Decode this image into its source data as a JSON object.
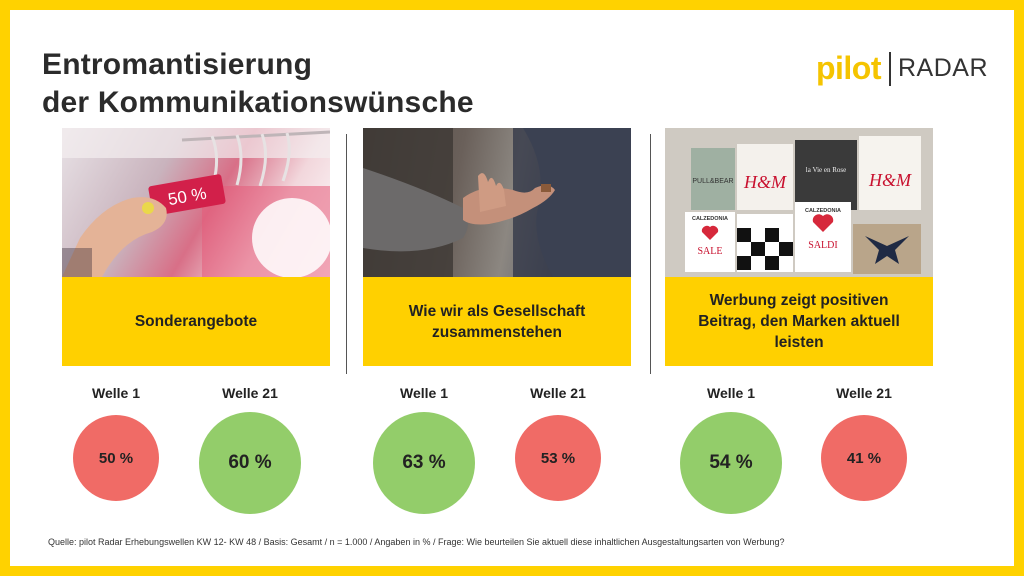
{
  "title": {
    "line1": "Entromantisierung",
    "line2": "der Kommunikationswünsche"
  },
  "logo": {
    "brand": "pilot",
    "product": "RADAR"
  },
  "panels": [
    {
      "caption": "Sonderangebote",
      "photo_tag": "50 %",
      "wave_a": {
        "label": "Welle 1",
        "value": "50 %"
      },
      "wave_b": {
        "label": "Welle 21",
        "value": "60 %"
      }
    },
    {
      "caption": "Wie wir als Gesellschaft zusammenstehen",
      "wave_a": {
        "label": "Welle 1",
        "value": "63 %"
      },
      "wave_b": {
        "label": "Welle 21",
        "value": "53 %"
      }
    },
    {
      "caption": "Werbung zeigt positiven Beitrag, den Marken aktuell leisten",
      "bags": [
        "PULL&BEAR",
        "H&M",
        "la Vie en Rose",
        "H&M",
        "CALZEDONIA",
        "SALE",
        "CALZEDONIA",
        "SALDI"
      ],
      "wave_a": {
        "label": "Welle 1",
        "value": "54 %"
      },
      "wave_b": {
        "label": "Welle 21",
        "value": "41 %"
      }
    }
  ],
  "source": "Quelle: pilot Radar Erhebungswellen KW 12- KW 48 / Basis: Gesamt / n = 1.000 / Angaben in % / Frage: Wie beurteilen Sie aktuell diese inhaltlichen Ausgestaltungsarten von Werbung?",
  "colors": {
    "frame": "#ffd200",
    "caption_bg": "#ffd000",
    "increase": "#93cd6a",
    "decrease": "#f06b66"
  }
}
